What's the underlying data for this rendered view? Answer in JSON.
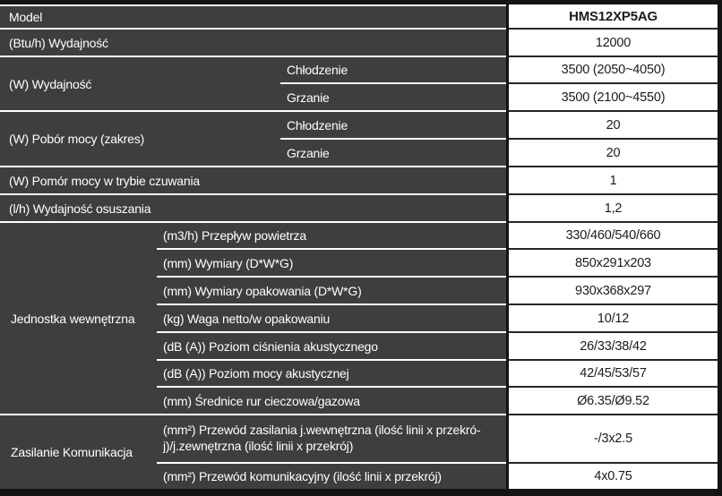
{
  "colors": {
    "header_cell_bg": "#3e3e40",
    "grid_line": "#262626",
    "outer_border": "#141414",
    "text_on_dark": "#ffffff",
    "text_on_light": "#1c1c1c"
  },
  "sections": [
    {
      "type": "simple",
      "label": "Model",
      "value": "HMS12XP5AG"
    },
    {
      "type": "simple",
      "label": "(Btu/h) Wydajność",
      "value": "12000"
    },
    {
      "type": "group",
      "label": "(W) Wydajność",
      "rows": [
        {
          "sub": "Chłodzenie",
          "value": "3500 (2050~4050)"
        },
        {
          "sub": "Grzanie",
          "value": "3500 (2100~4550)"
        }
      ]
    },
    {
      "type": "group",
      "label": "(W) Pobór mocy (zakres)",
      "rows": [
        {
          "sub": "Chłodzenie",
          "value": "20"
        },
        {
          "sub": "Grzanie",
          "value": "20"
        }
      ]
    },
    {
      "type": "simple",
      "label": "(W) Pomór mocy w trybie czuwania",
      "value": "1"
    },
    {
      "type": "simple",
      "label": "(l/h) Wydajność osuszania",
      "value": "1,2"
    },
    {
      "type": "group",
      "label": "Jednostka wewnętrzna",
      "rows": [
        {
          "sub": "(m3/h) Przepływ powietrza",
          "value": "330/460/540/660"
        },
        {
          "sub": "(mm) Wymiary (D*W*G)",
          "value": "850x291x203"
        },
        {
          "sub": "(mm) Wymiary opakowania (D*W*G)",
          "value": "930x368x297"
        },
        {
          "sub": "(kg) Waga netto/w opakowaniu",
          "value": "10/12"
        },
        {
          "sub": "(dB (A)) Poziom ciśnienia akustycznego",
          "value": "26/33/38/42"
        },
        {
          "sub": "(dB (A)) Poziom mocy akustycznej",
          "value": "42/45/53/57"
        },
        {
          "sub": "(mm) Średnice rur cieczowa/gazowa",
          "value": "Ø6.35/Ø9.52"
        }
      ]
    },
    {
      "type": "group",
      "label": "Zasilanie Komunikacja",
      "rows": [
        {
          "sub": "(mm²) Przewód zasilania j.wewnętrzna (ilość linii x przekró-j)/j.zewnętrzna (ilość linii x przekrój)",
          "value": "-/3x2.5"
        },
        {
          "sub": "(mm²) Przewód komunikacyjny (ilość linii x przekrój)",
          "value": "4x0.75"
        }
      ]
    }
  ]
}
